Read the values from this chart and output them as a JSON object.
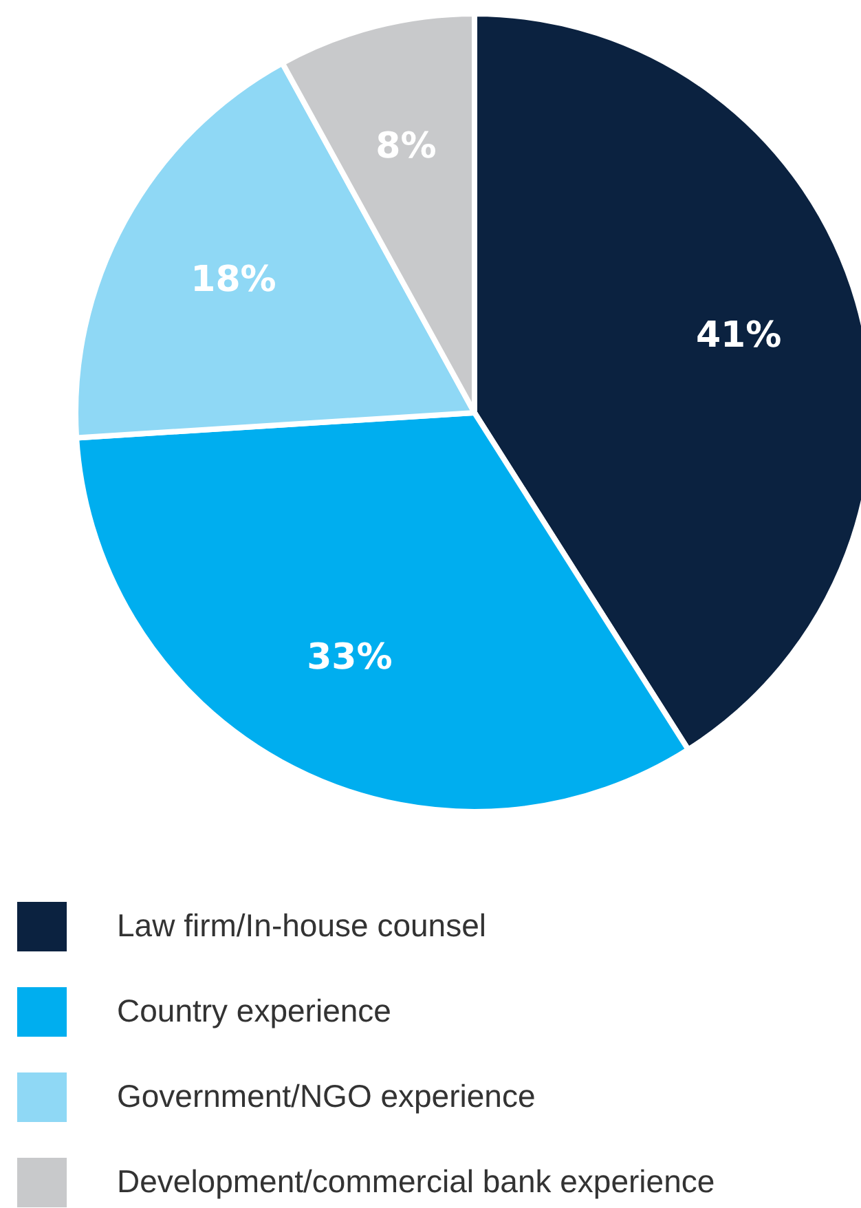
{
  "chart_data": {
    "type": "pie",
    "categories": [
      "Law firm/In-house counsel",
      "Country experience",
      "Government/NGO experience",
      "Development/commercial bank experience"
    ],
    "values": [
      41,
      33,
      18,
      8
    ],
    "colors": [
      "#0b2240",
      "#00aeef",
      "#8fd8f5",
      "#c8c9cb"
    ],
    "value_labels": [
      "41%",
      "33%",
      "18%",
      "8%"
    ],
    "legend": "bottom left"
  }
}
